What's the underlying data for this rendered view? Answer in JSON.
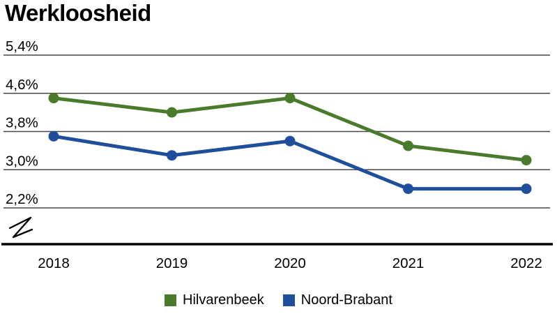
{
  "title": "Werkloosheid",
  "chart_data": {
    "type": "line",
    "title": "Werkloosheid",
    "x": [
      "2018",
      "2019",
      "2020",
      "2021",
      "2022"
    ],
    "xlabel": "",
    "ylabel": "",
    "unit": "%",
    "decimal_style": "comma",
    "y_ticks": [
      {
        "label": "5,4%",
        "value": 5.4
      },
      {
        "label": "4,6%",
        "value": 4.6
      },
      {
        "label": "3,8%",
        "value": 3.8
      },
      {
        "label": "3,0%",
        "value": 3.0
      },
      {
        "label": "2,2%",
        "value": 2.2
      }
    ],
    "ylim_shown": [
      2.2,
      5.4
    ],
    "axis_break": true,
    "grid": "horizontal",
    "legend_position": "bottom",
    "series": [
      {
        "name": "Hilvarenbeek",
        "color": "#4a7a2b",
        "values": [
          4.5,
          4.2,
          4.5,
          3.5,
          3.2
        ]
      },
      {
        "name": "Noord-Brabant",
        "color": "#1f4e9b",
        "values": [
          3.7,
          3.3,
          3.6,
          2.6,
          2.6
        ]
      }
    ],
    "colors": {
      "gridline": "#474747",
      "axis": "#000000",
      "text": "#000000"
    }
  }
}
